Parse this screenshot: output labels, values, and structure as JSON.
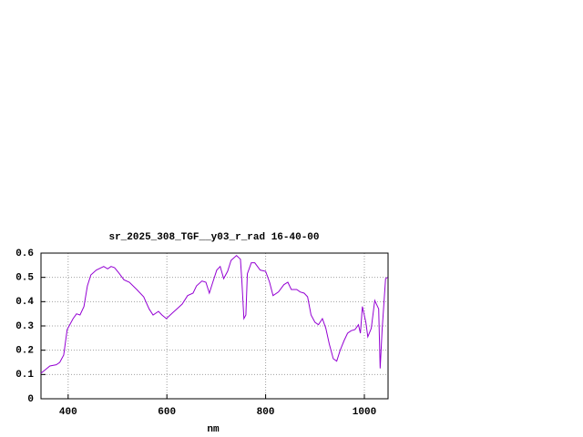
{
  "chart_data": {
    "type": "line",
    "title": "sr_2025_308_TGF__y03_r_rad 16-40-00",
    "x_label": "nm",
    "series": [
      {
        "color": "#9400d3",
        "x": [
          345,
          348,
          354,
          363,
          376,
          383,
          391,
          398,
          410,
          417,
          424,
          432,
          439,
          446,
          457,
          472,
          480,
          487,
          494,
          502,
          513,
          524,
          539,
          553,
          564,
          572,
          583,
          590,
          599,
          612,
          623,
          631,
          642,
          653,
          660,
          671,
          679,
          686,
          693,
          701,
          708,
          715,
          723,
          730,
          741,
          749,
          752,
          756,
          760,
          763,
          771,
          778,
          789,
          800,
          808,
          815,
          826,
          837,
          845,
          852,
          863,
          870,
          878,
          885,
          892,
          900,
          907,
          915,
          922,
          929,
          937,
          944,
          951,
          959,
          966,
          973,
          981,
          988,
          992,
          996,
          1003,
          1007,
          1014,
          1021,
          1029,
          1032,
          1036,
          1043,
          1047
        ],
        "values": [
          0.105,
          0.11,
          0.12,
          0.135,
          0.14,
          0.15,
          0.18,
          0.285,
          0.33,
          0.35,
          0.345,
          0.38,
          0.465,
          0.51,
          0.53,
          0.545,
          0.535,
          0.545,
          0.54,
          0.52,
          0.49,
          0.48,
          0.45,
          0.42,
          0.37,
          0.345,
          0.36,
          0.345,
          0.33,
          0.355,
          0.375,
          0.39,
          0.425,
          0.435,
          0.465,
          0.485,
          0.48,
          0.435,
          0.48,
          0.53,
          0.545,
          0.495,
          0.525,
          0.57,
          0.59,
          0.575,
          0.48,
          0.33,
          0.345,
          0.515,
          0.56,
          0.56,
          0.53,
          0.525,
          0.48,
          0.425,
          0.44,
          0.47,
          0.48,
          0.45,
          0.45,
          0.44,
          0.435,
          0.42,
          0.345,
          0.315,
          0.305,
          0.33,
          0.29,
          0.225,
          0.165,
          0.155,
          0.2,
          0.24,
          0.27,
          0.28,
          0.285,
          0.305,
          0.27,
          0.38,
          0.315,
          0.255,
          0.29,
          0.405,
          0.37,
          0.125,
          0.285,
          0.495,
          0.5
        ]
      }
    ],
    "xlim": [
      345,
      1048
    ],
    "xticks": [
      400,
      600,
      800,
      1000
    ],
    "ylim": [
      0,
      0.6
    ],
    "yticks": [
      0,
      0.1,
      0.2,
      0.3,
      0.4,
      0.5,
      0.6
    ],
    "grid": true
  }
}
